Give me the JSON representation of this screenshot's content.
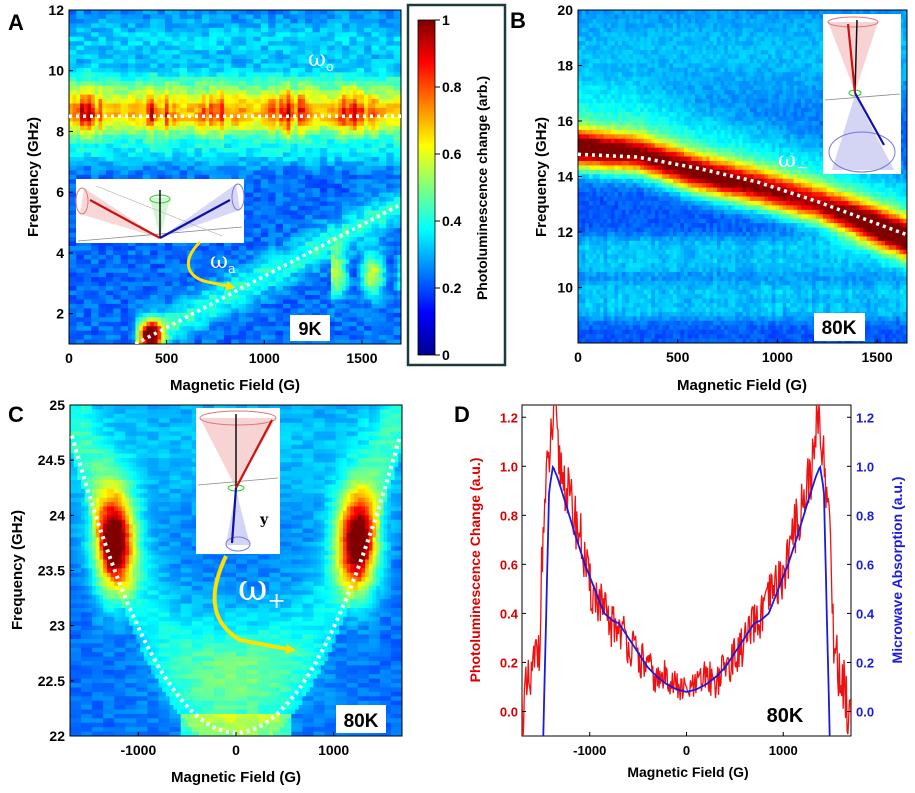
{
  "figure": {
    "colors": {
      "dashed": "#ffffff",
      "arrow": "#ffe000",
      "curve_red": "#ee1111",
      "curve_blue": "#1a1ae0",
      "panel_D_red_axis": "#dd0000",
      "panel_D_blue_axis": "#1a1ae0"
    }
  },
  "chart_data": [
    {
      "panel": "A",
      "type": "heatmap",
      "panel_label": "A",
      "xlabel": "Magnetic Field (G)",
      "ylabel": "Frequency (GHz)",
      "xlim": [
        0,
        1700
      ],
      "ylim": [
        1,
        12
      ],
      "xticks": [
        0,
        500,
        1000,
        1500
      ],
      "yticks": [
        2,
        4,
        6,
        8,
        10,
        12
      ],
      "temperature_label": "9K",
      "mode_labels": [
        {
          "symbol": "ω",
          "sub": "o"
        },
        {
          "symbol": "ω",
          "sub": "a"
        }
      ],
      "guide_lines": [
        {
          "name": "omega_o",
          "x": [
            0,
            1700
          ],
          "y": [
            8.5,
            8.5
          ]
        },
        {
          "name": "omega_a",
          "x": [
            340,
            1700
          ],
          "y": [
            1.0,
            5.6
          ]
        }
      ],
      "features": [
        {
          "mode": "omega_o",
          "center_ghz": 8.6,
          "width_ghz": 0.7,
          "peak": 0.75
        },
        {
          "mode": "omega_a",
          "peak": 0.35
        },
        {
          "mode": "spot",
          "x": 420,
          "y": 1.3,
          "peak": 0.85
        }
      ]
    },
    {
      "panel": "B",
      "type": "heatmap",
      "panel_label": "B",
      "xlabel": "Magnetic Field (G)",
      "ylabel": "Frequency (GHz)",
      "xlim": [
        0,
        1650
      ],
      "ylim": [
        8,
        20
      ],
      "xticks": [
        0,
        500,
        1000,
        1500
      ],
      "yticks": [
        10,
        12,
        14,
        16,
        18,
        20
      ],
      "temperature_label": "80K",
      "mode_labels": [
        {
          "symbol": "ω",
          "sub": "−"
        }
      ],
      "guide_lines": [
        {
          "name": "omega_minus",
          "x": [
            0,
            300,
            600,
            900,
            1200,
            1500,
            1650
          ],
          "y": [
            14.8,
            14.7,
            14.3,
            13.8,
            13.1,
            12.3,
            11.9
          ]
        }
      ],
      "features": [
        {
          "mode": "upper_band",
          "x": [
            0,
            300,
            600,
            900,
            1200,
            1500,
            1650
          ],
          "y": [
            15.0,
            14.8,
            14.1,
            13.6,
            13.0,
            12.2,
            11.8
          ],
          "peak": [
            0.85,
            0.75,
            0.8,
            0.75,
            0.7,
            0.9,
            0.85
          ]
        },
        {
          "mode": "lower_bands",
          "y": [
            11.5,
            10.8,
            9.9,
            9.2
          ],
          "peak": 0.3
        }
      ]
    },
    {
      "panel": "C",
      "type": "heatmap",
      "panel_label": "C",
      "xlabel": "Magnetic Field (G)",
      "ylabel": "Frequency (GHz)",
      "xlim": [
        -1700,
        1700
      ],
      "ylim": [
        22,
        25
      ],
      "xticks": [
        -1000,
        0,
        1000
      ],
      "yticks": [
        22,
        22.5,
        23,
        23.5,
        24,
        24.5,
        25
      ],
      "temperature_label": "80K",
      "mode_labels": [
        {
          "symbol": "ω",
          "sub": "+"
        }
      ],
      "inset_axis_label": "y",
      "guide_lines": [
        {
          "name": "omega_plus",
          "form": "parabola",
          "vertex": [
            0,
            22.03
          ],
          "through": [
            1680,
            24.72
          ]
        }
      ],
      "features": [
        {
          "mode": "lobe",
          "x": -1250,
          "y": 23.75,
          "peak": 0.95
        },
        {
          "mode": "lobe",
          "x": 1250,
          "y": 23.75,
          "peak": 0.95
        }
      ]
    },
    {
      "panel": "D",
      "type": "line",
      "panel_label": "D",
      "xlabel": "Magnetic Field (G)",
      "ylabel": "Photoluminescence Change (a.u.)",
      "ylabel_right": "Microwave Absorption (a.u.)",
      "xlim": [
        -1700,
        1700
      ],
      "ylim": [
        -0.1,
        1.25
      ],
      "xticks": [
        -1000,
        0,
        1000
      ],
      "yticks": [
        0.0,
        0.2,
        0.4,
        0.6,
        0.8,
        1.0,
        1.2
      ],
      "temperature_label": "80K",
      "series": [
        {
          "name": "Photoluminescence Change",
          "axis": "left",
          "x": [
            -1700,
            -1600,
            -1520,
            -1480,
            -1440,
            -1400,
            -1360,
            -1330,
            -1300,
            -1200,
            -1100,
            -1000,
            -900,
            -800,
            -700,
            -600,
            -500,
            -400,
            -300,
            -200,
            -100,
            0,
            100,
            200,
            300,
            400,
            500,
            600,
            700,
            800,
            900,
            1000,
            1100,
            1200,
            1300,
            1330,
            1360,
            1400,
            1440,
            1480,
            1520,
            1600,
            1700
          ],
          "y": [
            0.0,
            0.12,
            0.3,
            0.75,
            0.95,
            1.1,
            1.25,
            1.05,
            1.0,
            0.85,
            0.72,
            0.5,
            0.45,
            0.35,
            0.35,
            0.28,
            0.22,
            0.18,
            0.12,
            0.15,
            0.1,
            0.08,
            0.1,
            0.15,
            0.12,
            0.18,
            0.22,
            0.28,
            0.35,
            0.4,
            0.5,
            0.55,
            0.72,
            0.85,
            1.0,
            1.05,
            1.25,
            1.1,
            0.95,
            0.75,
            0.3,
            0.12,
            0.0
          ]
        },
        {
          "name": "Microwave Absorption",
          "axis": "right",
          "x": [
            -1480,
            -1450,
            -1420,
            -1380,
            -1330,
            -1250,
            -1150,
            -1050,
            -950,
            -850,
            -760,
            -700,
            -600,
            -500,
            -400,
            -300,
            -200,
            -100,
            0,
            100,
            200,
            300,
            400,
            500,
            600,
            700,
            760,
            850,
            950,
            1050,
            1150,
            1250,
            1330,
            1380,
            1420,
            1450,
            1480
          ],
          "y": [
            -0.1,
            0.4,
            0.9,
            1.0,
            0.95,
            0.85,
            0.72,
            0.6,
            0.5,
            0.4,
            0.37,
            0.36,
            0.3,
            0.24,
            0.18,
            0.14,
            0.11,
            0.09,
            0.08,
            0.09,
            0.11,
            0.14,
            0.18,
            0.24,
            0.3,
            0.36,
            0.37,
            0.4,
            0.5,
            0.6,
            0.72,
            0.85,
            0.95,
            1.0,
            0.9,
            0.4,
            -0.1
          ]
        }
      ]
    },
    {
      "panel": "colorbar",
      "type": "heatmap",
      "label": "Photoluminescence change (arb.)",
      "ylim": [
        0,
        1
      ],
      "yticks": [
        0,
        0.2,
        0.4,
        0.6,
        0.8,
        1
      ]
    }
  ]
}
